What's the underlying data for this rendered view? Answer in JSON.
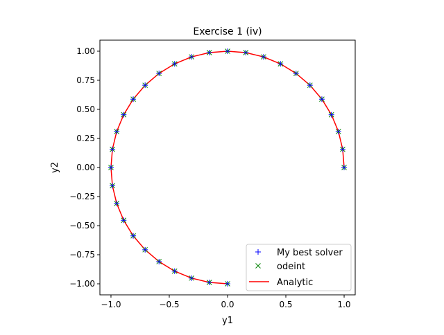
{
  "chart_data": {
    "type": "line",
    "title": "Exercise 1 (iv)",
    "xlabel": "y1",
    "ylabel": "y2",
    "xlim": [
      -1.095,
      1.095
    ],
    "ylim": [
      -1.095,
      1.095
    ],
    "xticks": [
      -1.0,
      -0.5,
      0.0,
      0.5,
      1.0
    ],
    "xtick_labels": [
      "−1.0",
      "−0.5",
      "0.0",
      "0.5",
      "1.0"
    ],
    "yticks": [
      -1.0,
      -0.75,
      -0.5,
      -0.25,
      0.0,
      0.25,
      0.5,
      0.75,
      1.0
    ],
    "ytick_labels": [
      "−1.00",
      "−0.75",
      "−0.50",
      "−0.25",
      "0.00",
      "0.25",
      "0.50",
      "0.75",
      "1.00"
    ],
    "grid": false,
    "legend_position": "lower-right",
    "x": [
      1,
      0.9877,
      0.9511,
      0.891,
      0.809,
      0.7071,
      0.5878,
      0.454,
      0.309,
      0.1564,
      0,
      -0.1564,
      -0.309,
      -0.454,
      -0.5878,
      -0.7071,
      -0.809,
      -0.891,
      -0.9511,
      -0.9877,
      -1,
      -0.9877,
      -0.9511,
      -0.891,
      -0.809,
      -0.7071,
      -0.5878,
      -0.454,
      -0.309,
      -0.1564,
      0
    ],
    "y": [
      0,
      0.1564,
      0.309,
      0.454,
      0.5878,
      0.7071,
      0.809,
      0.891,
      0.9511,
      0.9877,
      1,
      0.9877,
      0.9511,
      0.891,
      0.809,
      0.7071,
      0.5878,
      0.454,
      0.309,
      0.1564,
      0,
      -0.1564,
      -0.309,
      -0.454,
      -0.5878,
      -0.7071,
      -0.809,
      -0.891,
      -0.9511,
      -0.9877,
      -1
    ],
    "series": [
      {
        "name": "My best solver",
        "marker": "+",
        "color": "#0000ff"
      },
      {
        "name": "odeint",
        "marker": "x",
        "color": "#008000"
      },
      {
        "name": "Analytic",
        "marker": "line",
        "color": "#ff0000"
      }
    ]
  }
}
